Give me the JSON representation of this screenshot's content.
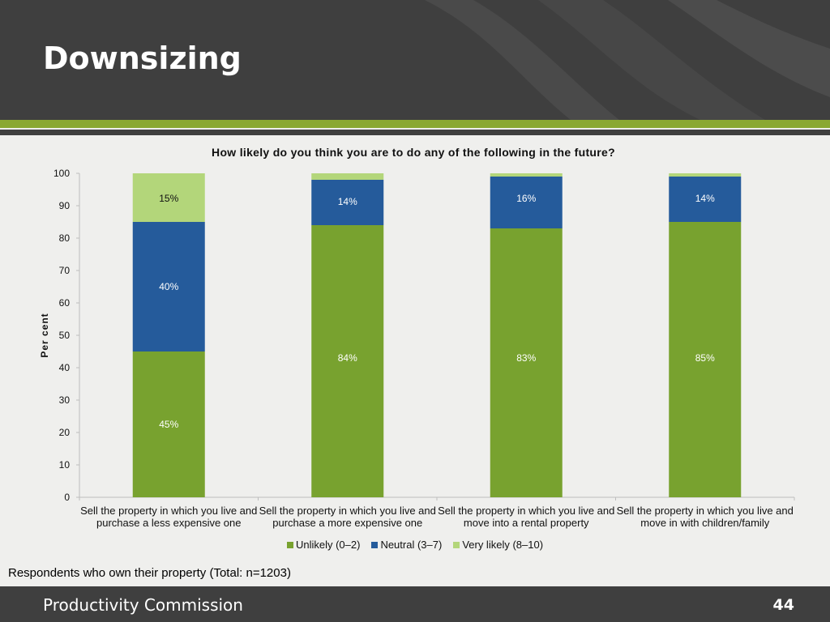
{
  "slide": {
    "title": "Downsizing",
    "footnote": "Respondents who own their property (Total: n=1203)",
    "org_name": "Productivity Commission",
    "page_number": "44"
  },
  "chart_data": {
    "type": "bar",
    "stacked": true,
    "title": "How likely do you think you are to do any of the following in the future?",
    "xlabel": "",
    "ylabel": "Per cent",
    "ylim": [
      0,
      100
    ],
    "yticks": [
      0,
      10,
      20,
      30,
      40,
      50,
      60,
      70,
      80,
      90,
      100
    ],
    "categories": [
      "Sell the property in which you live and purchase a less expensive one",
      "Sell the property in which you live and purchase a more expensive one",
      "Sell the property in which you live and move into a rental property",
      "Sell the property in which you live and move in with children/family"
    ],
    "series": [
      {
        "name": "Unlikely (0–2)",
        "color": "#78a22f",
        "values": [
          45,
          84,
          83,
          85
        ],
        "labels": [
          "45%",
          "84%",
          "83%",
          "85%"
        ]
      },
      {
        "name": "Neutral (3–7)",
        "color": "#255b9b",
        "values": [
          40,
          14,
          16,
          14
        ],
        "labels": [
          "40%",
          "14%",
          "16%",
          "14%"
        ]
      },
      {
        "name": "Very likely (8–10)",
        "color": "#b3d67a",
        "values": [
          15,
          2,
          1,
          1
        ],
        "labels": [
          "15%",
          "",
          "",
          ""
        ]
      }
    ],
    "grid": false,
    "legend_position": "bottom"
  }
}
